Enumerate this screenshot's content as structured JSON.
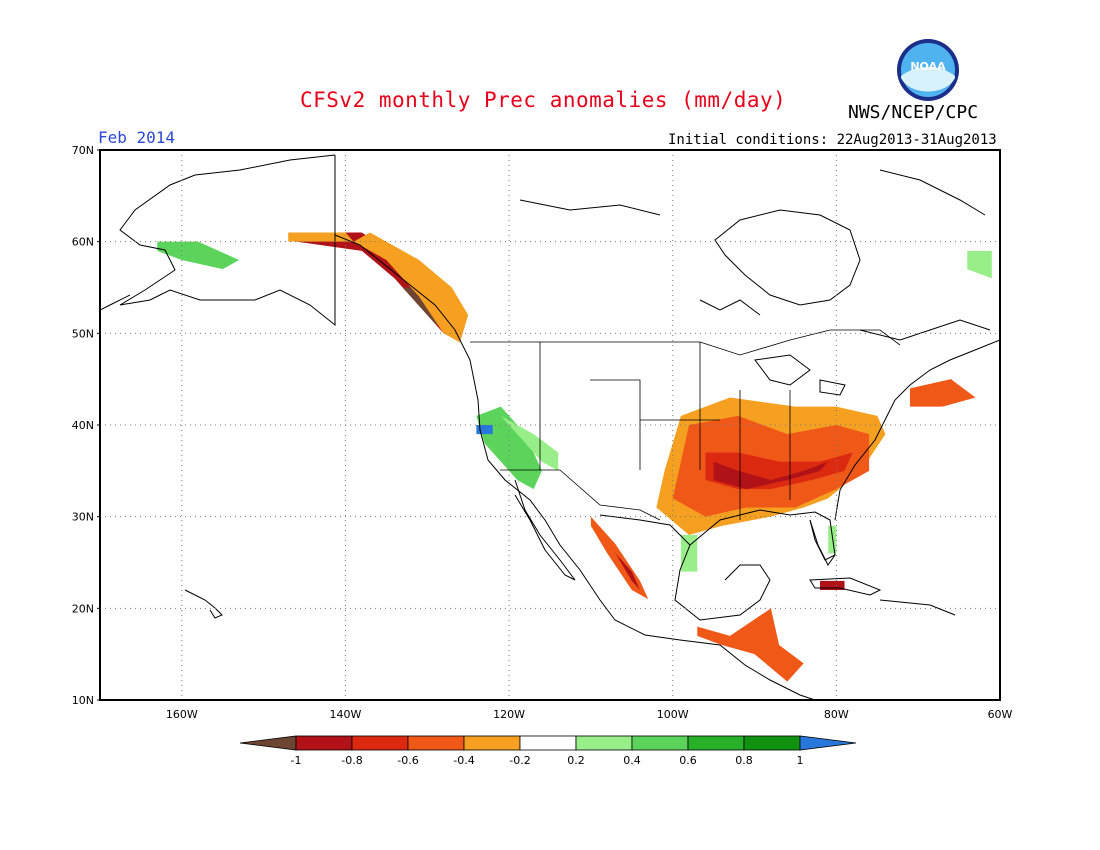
{
  "title": "CFSv2 monthly Prec anomalies (mm/day)",
  "organization": "NWS/NCEP/CPC",
  "logo_text": "NOAA",
  "valid_month": "Feb 2014",
  "initial_conditions": "Initial conditions: 22Aug2013-31Aug2013",
  "colors": {
    "title": "#e8001a",
    "month": "#2a48d8",
    "dry_extreme": "#6e4432",
    "dry_very_strong": "#b01218",
    "dry_strong": "#dc2a10",
    "dry_moderate": "#f05818",
    "dry_weak": "#f5a020",
    "neutral": "#ffffff",
    "wet_weak": "#98ee88",
    "wet_moderate": "#5cd45c",
    "wet_strong": "#28b028",
    "wet_very_strong": "#109210",
    "wet_extreme": "#2878dc"
  },
  "map": {
    "lon_min": -170,
    "lon_max": -60,
    "lat_min": 10,
    "lat_max": 70,
    "lat_labels": [
      "70N",
      "60N",
      "50N",
      "40N",
      "30N",
      "20N",
      "10N"
    ],
    "lat_values": [
      70,
      60,
      50,
      40,
      30,
      20,
      10
    ],
    "lon_labels": [
      "160W",
      "140W",
      "120W",
      "100W",
      "80W",
      "60W"
    ],
    "lon_values": [
      -160,
      -140,
      -120,
      -100,
      -80,
      -60
    ],
    "grid": "dotted"
  },
  "colorbar": {
    "labels": [
      "-1",
      "-0.8",
      "-0.6",
      "-0.4",
      "-0.2",
      "0.2",
      "0.4",
      "0.6",
      "0.8",
      "1"
    ],
    "bins": [
      "dry_extreme",
      "dry_very_strong",
      "dry_strong",
      "dry_moderate",
      "dry_weak",
      "neutral",
      "wet_weak",
      "wet_moderate",
      "wet_strong",
      "wet_very_strong",
      "wet_extreme"
    ]
  },
  "anomaly_regions": [
    {
      "name": "pacific-northwest-coast",
      "class": "dry_very_strong",
      "pts": [
        [
          -146,
          61
        ],
        [
          -138,
          61
        ],
        [
          -133,
          58
        ],
        [
          -128,
          53
        ],
        [
          -126,
          50
        ],
        [
          -128,
          50
        ],
        [
          -131,
          53
        ],
        [
          -134,
          56
        ],
        [
          -138,
          59
        ],
        [
          -146,
          60
        ]
      ]
    },
    {
      "name": "bc-coast-extreme",
      "class": "dry_extreme",
      "pts": [
        [
          -132,
          55
        ],
        [
          -130,
          53
        ],
        [
          -128,
          51
        ],
        [
          -129,
          51
        ],
        [
          -131,
          53
        ],
        [
          -133,
          55
        ]
      ]
    },
    {
      "name": "bc-interior",
      "class": "dry_weak",
      "pts": [
        [
          -137,
          61
        ],
        [
          -131,
          58
        ],
        [
          -127,
          55
        ],
        [
          -125,
          52
        ],
        [
          -126,
          49
        ],
        [
          -128,
          50
        ],
        [
          -131,
          54
        ],
        [
          -135,
          58
        ],
        [
          -139,
          60
        ]
      ]
    },
    {
      "name": "alaska-panhandle-edge",
      "class": "dry_weak",
      "pts": [
        [
          -147,
          61
        ],
        [
          -140,
          61
        ],
        [
          -139,
          60
        ],
        [
          -147,
          60
        ]
      ]
    },
    {
      "name": "central-us-dry",
      "class": "dry_weak",
      "pts": [
        [
          -99,
          41
        ],
        [
          -93,
          43
        ],
        [
          -85,
          42
        ],
        [
          -80,
          42
        ],
        [
          -75,
          41
        ],
        [
          -74,
          39
        ],
        [
          -77,
          35
        ],
        [
          -81,
          32
        ],
        [
          -84,
          31
        ],
        [
          -88,
          30
        ],
        [
          -94,
          29
        ],
        [
          -98,
          28
        ],
        [
          -102,
          31
        ],
        [
          -101,
          35
        ]
      ]
    },
    {
      "name": "central-us-moderate",
      "class": "dry_moderate",
      "pts": [
        [
          -98,
          40
        ],
        [
          -92,
          41
        ],
        [
          -86,
          39
        ],
        [
          -80,
          40
        ],
        [
          -76,
          39
        ],
        [
          -76,
          35
        ],
        [
          -80,
          33
        ],
        [
          -85,
          31
        ],
        [
          -91,
          31
        ],
        [
          -96,
          30
        ],
        [
          -100,
          32
        ],
        [
          -99,
          36
        ]
      ]
    },
    {
      "name": "central-us-strong",
      "class": "dry_strong",
      "pts": [
        [
          -96,
          37
        ],
        [
          -92,
          37
        ],
        [
          -87,
          36
        ],
        [
          -82,
          36
        ],
        [
          -78,
          37
        ],
        [
          -79,
          35
        ],
        [
          -83,
          34
        ],
        [
          -88,
          33
        ],
        [
          -92,
          33
        ],
        [
          -96,
          34
        ]
      ]
    },
    {
      "name": "central-us-core",
      "class": "dry_very_strong",
      "pts": [
        [
          -95,
          36
        ],
        [
          -92,
          35
        ],
        [
          -88,
          34
        ],
        [
          -84,
          35
        ],
        [
          -81,
          36
        ],
        [
          -82,
          35
        ],
        [
          -86,
          34
        ],
        [
          -91,
          33
        ],
        [
          -95,
          34
        ]
      ]
    },
    {
      "name": "mexico-west-dry",
      "class": "dry_moderate",
      "pts": [
        [
          -110,
          30
        ],
        [
          -107,
          27
        ],
        [
          -104,
          23
        ],
        [
          -103,
          21
        ],
        [
          -105,
          22
        ],
        [
          -108,
          26
        ],
        [
          -110,
          29
        ]
      ]
    },
    {
      "name": "mexico-west-core",
      "class": "dry_very_strong",
      "pts": [
        [
          -108,
          27
        ],
        [
          -105,
          24
        ],
        [
          -104,
          22
        ],
        [
          -105,
          23
        ],
        [
          -107,
          26
        ]
      ]
    },
    {
      "name": "central-america-dry",
      "class": "dry_moderate",
      "pts": [
        [
          -97,
          18
        ],
        [
          -93,
          17
        ],
        [
          -88,
          20
        ],
        [
          -87,
          16
        ],
        [
          -84,
          14
        ],
        [
          -86,
          12
        ],
        [
          -90,
          15
        ],
        [
          -94,
          16
        ],
        [
          -97,
          17
        ]
      ]
    },
    {
      "name": "northeast-dry",
      "class": "dry_moderate",
      "pts": [
        [
          -71,
          44
        ],
        [
          -66,
          45
        ],
        [
          -63,
          43
        ],
        [
          -67,
          42
        ],
        [
          -71,
          42
        ]
      ]
    },
    {
      "name": "cuba-dry",
      "class": "dry_very_strong",
      "pts": [
        [
          -82,
          23
        ],
        [
          -79,
          23
        ],
        [
          -79,
          22
        ],
        [
          -82,
          22
        ]
      ]
    },
    {
      "name": "california-wet",
      "class": "wet_moderate",
      "pts": [
        [
          -124,
          41
        ],
        [
          -121,
          42
        ],
        [
          -118,
          39
        ],
        [
          -116,
          35
        ],
        [
          -117,
          33
        ],
        [
          -119,
          34
        ],
        [
          -121,
          36
        ],
        [
          -123,
          38
        ]
      ]
    },
    {
      "name": "california-wet-weak",
      "class": "wet_weak",
      "pts": [
        [
          -121,
          41
        ],
        [
          -117,
          39
        ],
        [
          -114,
          37
        ],
        [
          -114,
          35
        ],
        [
          -116,
          36
        ],
        [
          -119,
          39
        ]
      ]
    },
    {
      "name": "norcal-extreme",
      "class": "wet_extreme",
      "pts": [
        [
          -124,
          40
        ],
        [
          -122,
          40
        ],
        [
          -122,
          39
        ],
        [
          -124,
          39
        ]
      ]
    },
    {
      "name": "southwest-alaska-wet",
      "class": "wet_moderate",
      "pts": [
        [
          -163,
          60
        ],
        [
          -158,
          60
        ],
        [
          -153,
          58
        ],
        [
          -155,
          57
        ],
        [
          -160,
          58
        ],
        [
          -163,
          59
        ]
      ]
    },
    {
      "name": "east-canada-wet",
      "class": "wet_weak",
      "pts": [
        [
          -64,
          59
        ],
        [
          -61,
          59
        ],
        [
          -61,
          56
        ],
        [
          -64,
          57
        ]
      ]
    },
    {
      "name": "florida-wet",
      "class": "wet_weak",
      "pts": [
        [
          -81,
          29
        ],
        [
          -80,
          29
        ],
        [
          -80,
          26
        ],
        [
          -81,
          26
        ]
      ]
    },
    {
      "name": "texas-coast-wet",
      "class": "wet_weak",
      "pts": [
        [
          -99,
          28
        ],
        [
          -97,
          28
        ],
        [
          -97,
          24
        ],
        [
          -99,
          24
        ]
      ]
    }
  ]
}
